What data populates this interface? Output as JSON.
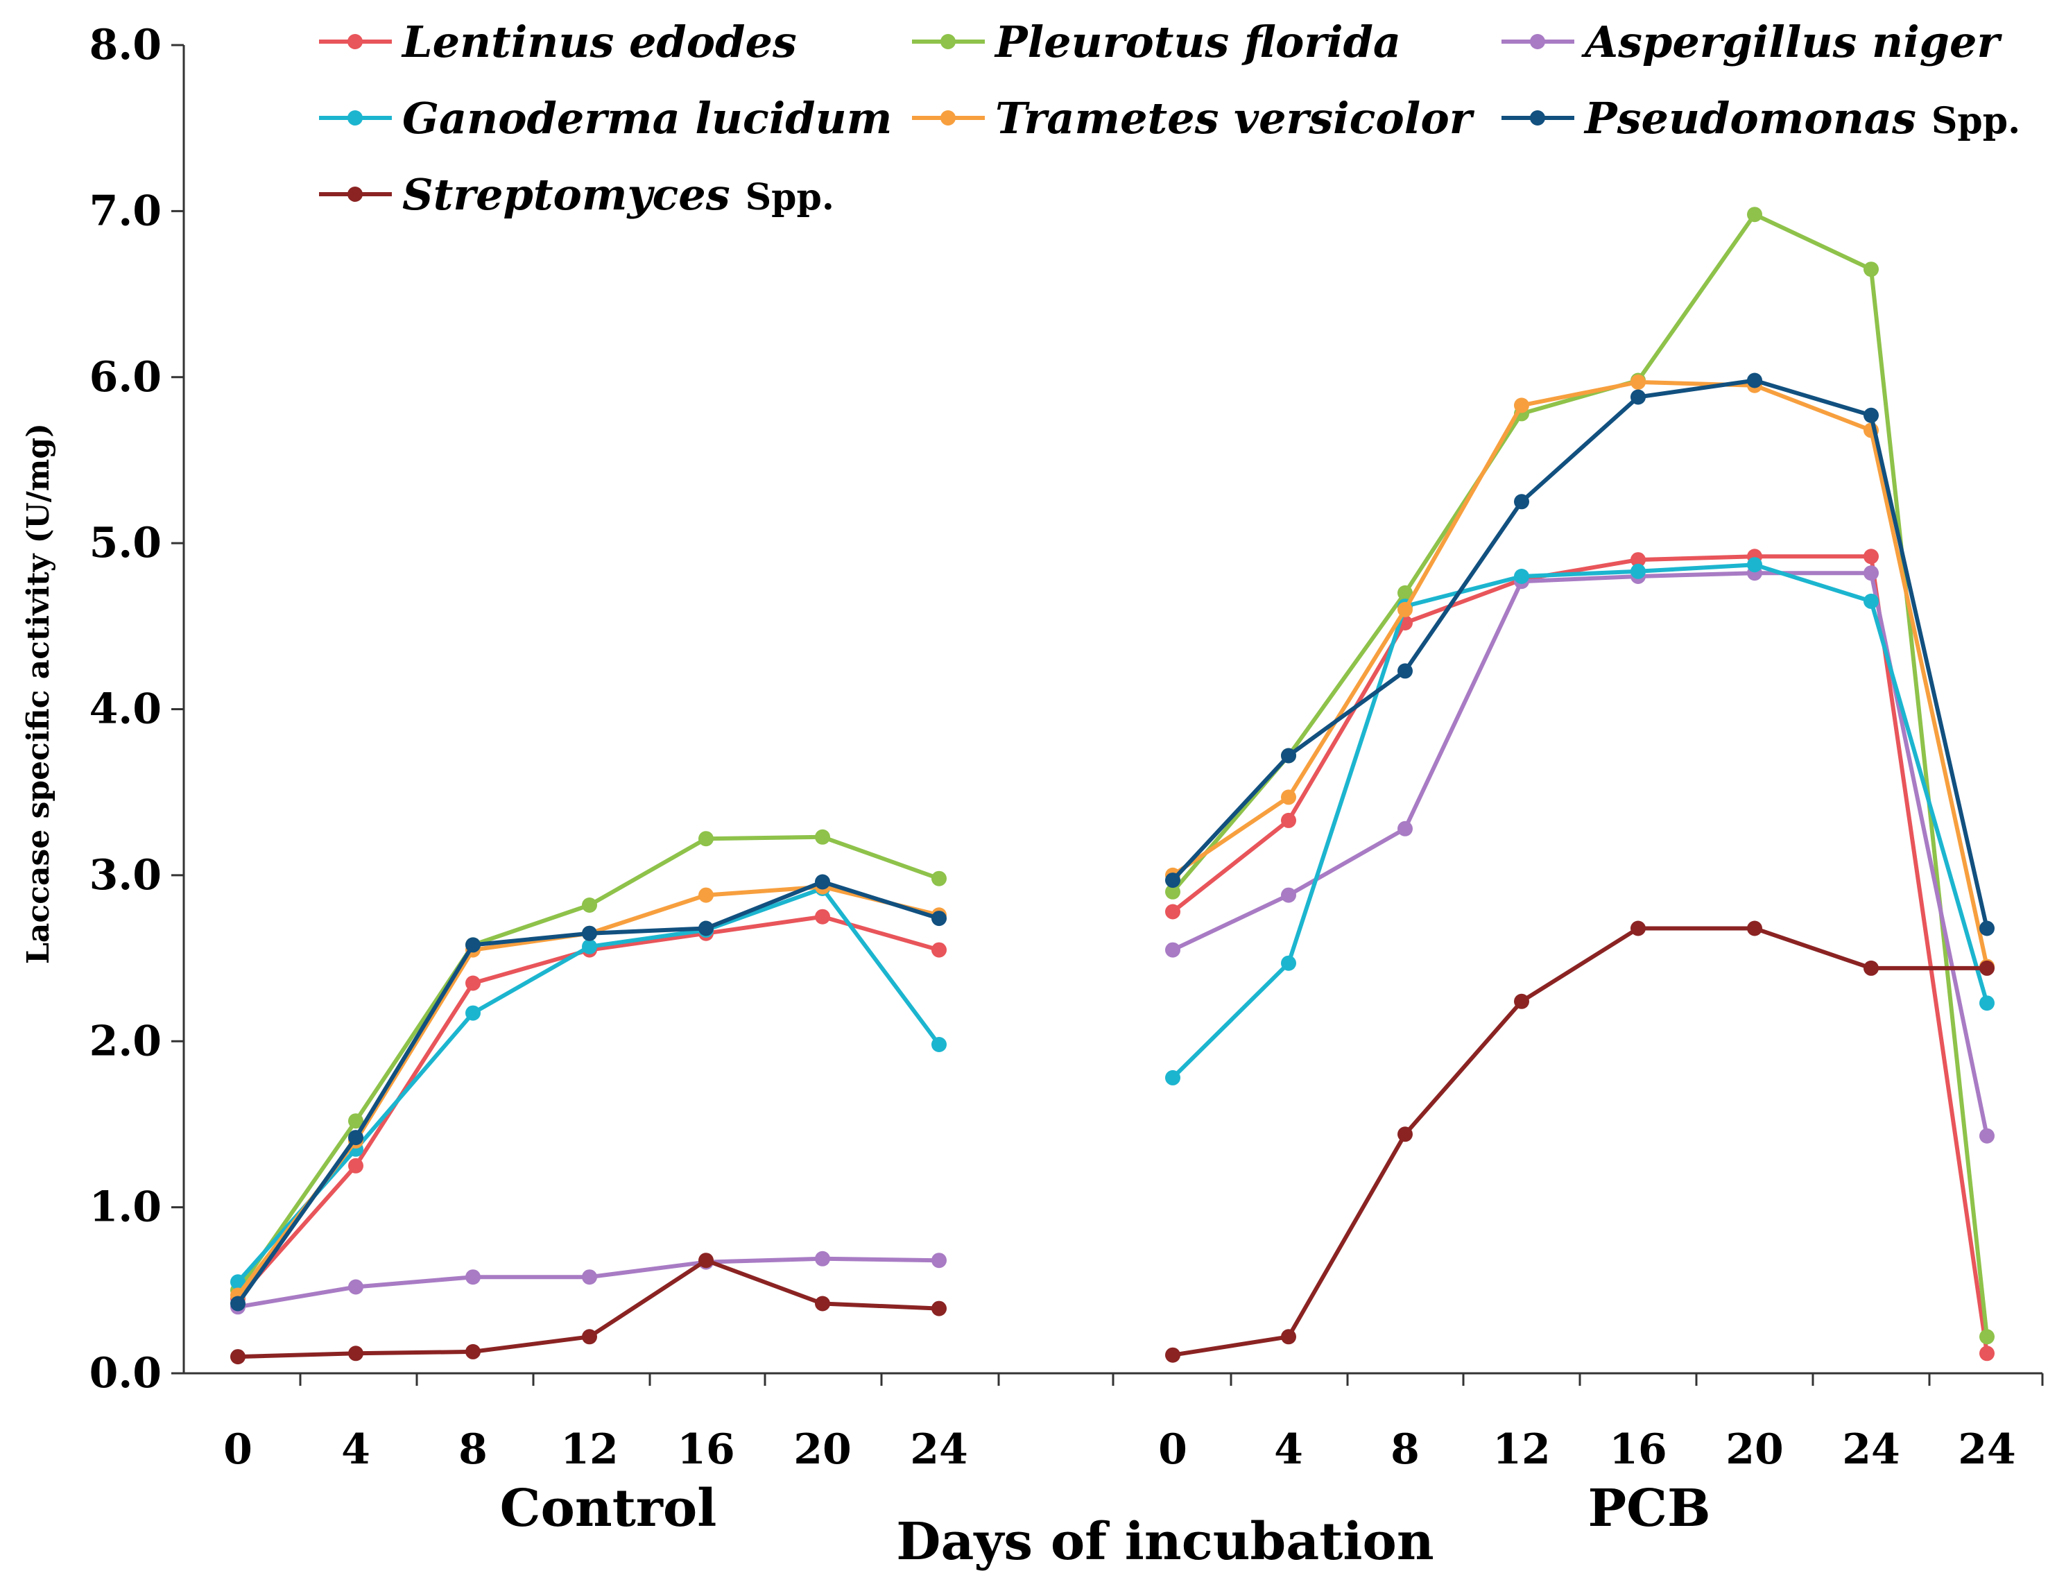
{
  "chart_data": {
    "type": "line",
    "ylabel": "Laccase specific activity (U/mg)",
    "xlabel": "Days of incubation",
    "ylim": [
      0,
      8
    ],
    "y_ticks": [
      "0.0",
      "1.0",
      "2.0",
      "3.0",
      "4.0",
      "5.0",
      "6.0",
      "7.0",
      "8.0"
    ],
    "groups": [
      {
        "name": "Control",
        "categories": [
          "0",
          "4",
          "8",
          "12",
          "16",
          "20",
          "24"
        ]
      },
      {
        "name": "PCB",
        "categories": [
          "0",
          "4",
          "8",
          "12",
          "16",
          "20",
          "24",
          "24"
        ]
      }
    ],
    "series": [
      {
        "name": "Lentinus edodes",
        "suffix": "",
        "color": "#e8555a",
        "control": [
          0.45,
          1.25,
          2.35,
          2.55,
          2.65,
          2.75,
          2.55
        ],
        "pcb": [
          2.78,
          3.33,
          4.52,
          4.78,
          4.9,
          4.92,
          4.92,
          0.12
        ]
      },
      {
        "name": "Pleurotus florida",
        "suffix": "",
        "color": "#8ec24a",
        "control": [
          0.5,
          1.52,
          2.58,
          2.82,
          3.22,
          3.23,
          2.98
        ],
        "pcb": [
          2.9,
          3.72,
          4.7,
          5.78,
          5.98,
          6.98,
          6.65,
          0.22
        ]
      },
      {
        "name": "Aspergillus niger",
        "suffix": "",
        "color": "#a87bc4",
        "control": [
          0.4,
          0.52,
          0.58,
          0.58,
          0.67,
          0.69,
          0.68
        ],
        "pcb": [
          2.55,
          2.88,
          3.28,
          4.77,
          4.8,
          4.82,
          4.82,
          1.43
        ]
      },
      {
        "name": "Ganoderma lucidum",
        "suffix": "",
        "color": "#1cb5cf",
        "control": [
          0.55,
          1.35,
          2.17,
          2.57,
          2.67,
          2.92,
          1.98
        ],
        "pcb": [
          1.78,
          2.47,
          4.62,
          4.8,
          4.83,
          4.87,
          4.65,
          2.23
        ]
      },
      {
        "name": "Trametes versicolor",
        "suffix": "",
        "color": "#f79f3e",
        "control": [
          0.47,
          1.4,
          2.55,
          2.65,
          2.88,
          2.93,
          2.76
        ],
        "pcb": [
          3.0,
          3.47,
          4.6,
          5.83,
          5.97,
          5.95,
          5.68,
          2.45
        ]
      },
      {
        "name": "Pseudomonas",
        "suffix": "Spp.",
        "color": "#11507f",
        "control": [
          0.42,
          1.42,
          2.58,
          2.65,
          2.68,
          2.96,
          2.74
        ],
        "pcb": [
          2.97,
          3.72,
          4.23,
          5.25,
          5.88,
          5.98,
          5.77,
          2.68
        ]
      },
      {
        "name": "Streptomyces",
        "suffix": "Spp.",
        "color": "#8b2323",
        "control": [
          0.1,
          0.12,
          0.13,
          0.22,
          0.68,
          0.42,
          0.39
        ],
        "pcb": [
          0.11,
          0.22,
          1.44,
          2.24,
          2.68,
          2.68,
          2.44,
          2.44
        ]
      }
    ]
  }
}
